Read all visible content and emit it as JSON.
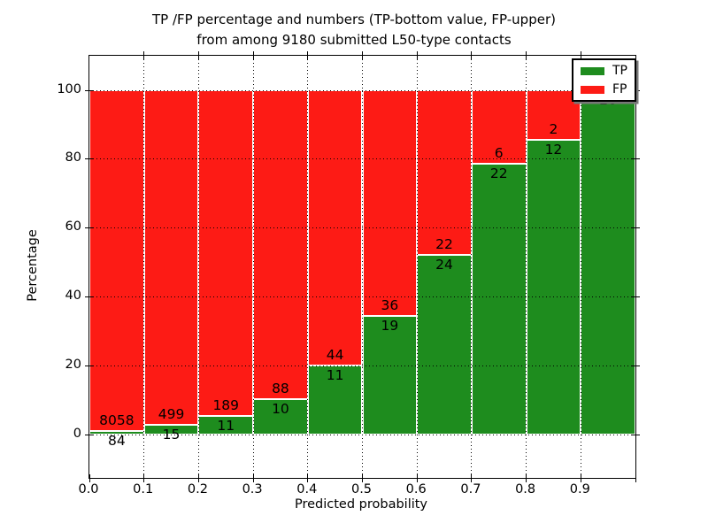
{
  "title": {
    "line1": "TP /FP percentage and numbers (TP-bottom value, FP-upper)",
    "line2": "from among 9180 submitted L50-type contacts"
  },
  "axes": {
    "xlabel": "Predicted probability",
    "ylabel": "Percentage",
    "xtick_labels": [
      "0.0",
      "0.1",
      "0.2",
      "0.3",
      "0.4",
      "0.5",
      "0.6",
      "0.7",
      "0.8",
      "0.9"
    ],
    "ytick_labels": [
      "0",
      "20",
      "40",
      "60",
      "80",
      "100"
    ],
    "ytick_values": [
      0,
      20,
      40,
      60,
      80,
      100
    ]
  },
  "legend": {
    "items": [
      {
        "label": "TP",
        "color": "#1e8c1e"
      },
      {
        "label": "FP",
        "color": "#fd1b15"
      }
    ]
  },
  "colors": {
    "tp": "#1e8c1e",
    "fp": "#fd1b15",
    "bar_edge": "#ffffff",
    "grid": "#000000",
    "background": "#ffffff"
  },
  "chart_data": {
    "type": "bar",
    "stacked": true,
    "normalized": "each bin stacked to 100% (TP% + FP%)",
    "title": "TP /FP percentage and numbers (TP-bottom value, FP-upper) from among 9180 submitted L50-type contacts",
    "xlabel": "Predicted probability",
    "ylabel": "Percentage",
    "total_submitted": 9180,
    "bin_edges": [
      0.0,
      0.1,
      0.2,
      0.3,
      0.4,
      0.5,
      0.6,
      0.7,
      0.8,
      0.9,
      1.0
    ],
    "series": [
      {
        "name": "TP",
        "color": "#1e8c1e",
        "counts": [
          84,
          15,
          11,
          10,
          11,
          19,
          24,
          22,
          12,
          28
        ]
      },
      {
        "name": "FP",
        "color": "#fd1b15",
        "counts": [
          8058,
          499,
          189,
          88,
          44,
          36,
          22,
          6,
          2,
          0
        ]
      }
    ],
    "tp_percent": [
      1.0,
      2.9,
      5.5,
      10.2,
      20.0,
      34.5,
      52.2,
      78.6,
      85.7,
      100.0
    ],
    "xlim": [
      0.0,
      1.0
    ],
    "ylim": [
      -12.5,
      110
    ],
    "grid": true,
    "legend_position": "upper right"
  }
}
